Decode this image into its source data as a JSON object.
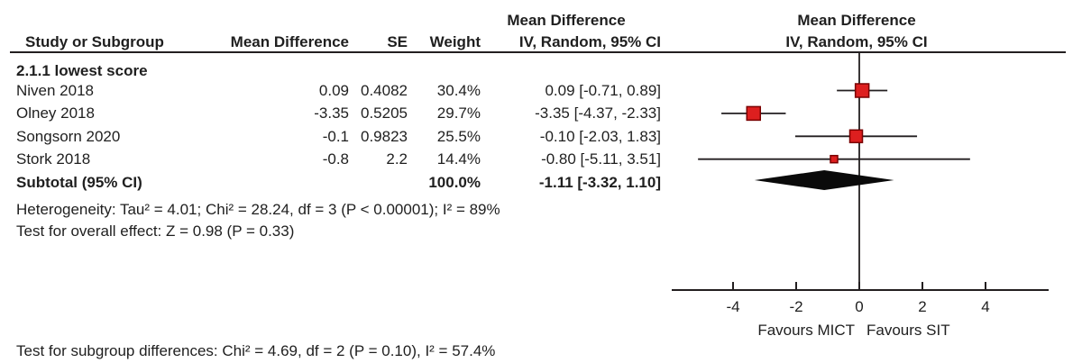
{
  "table": {
    "effect_title_top": "Mean Difference",
    "plot_title_top": "Mean Difference",
    "col_study": "Study or Subgroup",
    "col_md": "Mean Difference",
    "col_se": "SE",
    "col_weight": "Weight",
    "col_ci": "IV, Random, 95% CI",
    "col_plot": "IV, Random, 95% CI",
    "subgroup_label": "2.1.1 lowest score",
    "subtotal_label": "Subtotal (95% CI)",
    "subtotal_weight": "100.0%",
    "subtotal_ci": "-1.11 [-3.32, 1.10]"
  },
  "studies": [
    {
      "name": "Niven 2018",
      "md": "0.09",
      "se": "0.4082",
      "weight": "30.4%",
      "ci": "0.09 [-0.71, 0.89]"
    },
    {
      "name": "Olney 2018",
      "md": "-3.35",
      "se": "0.5205",
      "weight": "29.7%",
      "ci": "-3.35 [-4.37, -2.33]"
    },
    {
      "name": "Songsorn 2020",
      "md": "-0.1",
      "se": "0.9823",
      "weight": "25.5%",
      "ci": "-0.10 [-2.03, 1.83]"
    },
    {
      "name": "Stork 2018",
      "md": "-0.8",
      "se": "2.2",
      "weight": "14.4%",
      "ci": "-0.80 [-5.11, 3.51]"
    }
  ],
  "stats": {
    "heterogeneity": "Heterogeneity: Tau² = 4.01; Chi² = 28.24, df = 3 (P < 0.00001); I² = 89%",
    "overall_effect": "Test for overall effect: Z = 0.98 (P = 0.33)",
    "subgroup_differences": "Test for subgroup differences: Chi² = 4.69, df = 2 (P = 0.10), I² = 57.4%"
  },
  "axis": {
    "favours_left": "Favours MICT",
    "favours_right": "Favours SIT"
  },
  "colors": {
    "marker_fill": "#dd1f1f",
    "marker_border": "#7a0000",
    "line": "#231f20",
    "diamond": "#0a0a0a"
  },
  "chart_data": {
    "type": "scatter",
    "title": "Mean Difference — IV, Random, 95% CI (forest plot)",
    "subgroup": "2.1.1 lowest score",
    "xlim": [
      -6,
      6
    ],
    "xticks": [
      -4,
      -2,
      0,
      2,
      4
    ],
    "xlabel_left": "Favours MICT",
    "xlabel_right": "Favours SIT",
    "points": [
      {
        "study": "Niven 2018",
        "md": 0.09,
        "se": 0.4082,
        "weight_pct": 30.4,
        "ci_low": -0.71,
        "ci_high": 0.89
      },
      {
        "study": "Olney 2018",
        "md": -3.35,
        "se": 0.5205,
        "weight_pct": 29.7,
        "ci_low": -4.37,
        "ci_high": -2.33
      },
      {
        "study": "Songsorn 2020",
        "md": -0.1,
        "se": 0.9823,
        "weight_pct": 25.5,
        "ci_low": -2.03,
        "ci_high": 1.83
      },
      {
        "study": "Stork 2018",
        "md": -0.8,
        "se": 2.2,
        "weight_pct": 14.4,
        "ci_low": -5.11,
        "ci_high": 3.51
      }
    ],
    "subtotal": {
      "label": "Subtotal (95% CI)",
      "md": -1.11,
      "ci_low": -3.32,
      "ci_high": 1.1,
      "weight_pct": 100.0
    },
    "heterogeneity": {
      "tau2": 4.01,
      "chi2": 28.24,
      "df": 3,
      "p": "< 0.00001",
      "i2_pct": 89
    },
    "overall_effect": {
      "z": 0.98,
      "p": 0.33
    },
    "subgroup_differences": {
      "chi2": 4.69,
      "df": 2,
      "p": 0.1,
      "i2_pct": 57.4
    }
  }
}
